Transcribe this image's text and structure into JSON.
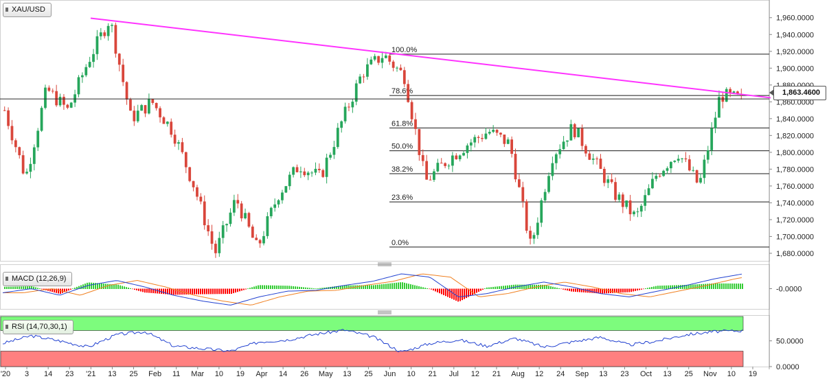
{
  "symbol_label": "XAU/USD",
  "macd_label": "MACD (12,26,9)",
  "rsi_label": "RSI (14,70,30,1)",
  "current_price_label": "1,863.4600",
  "chart_data": [
    {
      "type": "candlestick",
      "symbol": "XAU/USD",
      "y_axis_ticks": [
        "1,960.0000",
        "1,940.0000",
        "1,920.0000",
        "1,900.0000",
        "1,880.0000",
        "1,860.0000",
        "1,840.0000",
        "1,820.0000",
        "1,800.0000",
        "1,780.0000",
        "1,760.0000",
        "1,740.0000",
        "1,720.0000",
        "1,700.0000",
        "1,680.0000"
      ],
      "ylim": [
        1671,
        1981
      ],
      "x_axis_ticks": [
        "'20",
        "3",
        "14",
        "23",
        "'21",
        "13",
        "25",
        "Feb",
        "11",
        "Mar",
        "10",
        "19",
        "Apr",
        "14",
        "26",
        "May",
        "13",
        "25",
        "Jun",
        "10",
        "21",
        "Jul",
        "12",
        "21",
        "Aug",
        "12",
        "24",
        "Sep",
        "13",
        "23",
        "Oct",
        "13",
        "25",
        "Nov",
        "10",
        "19"
      ],
      "current_price": 1863.46,
      "trendline": {
        "color": "#ff33ff",
        "from": 1959.4,
        "to": 1864.8
      },
      "fibonacci_levels": [
        {
          "label": "100.0%",
          "value": 1916.7
        },
        {
          "label": "78.6%",
          "value": 1867.5
        },
        {
          "label": "61.8%",
          "value": 1829.0
        },
        {
          "label": "50.0%",
          "value": 1801.8
        },
        {
          "label": "38.2%",
          "value": 1774.6
        },
        {
          "label": "23.6%",
          "value": 1741.1
        },
        {
          "label": "0.0%",
          "value": 1687.4
        }
      ],
      "swing_points": [
        {
          "date": "'20",
          "price": 1850
        },
        {
          "date": "3",
          "price": 1770
        },
        {
          "date": "14",
          "price": 1875
        },
        {
          "date": "23",
          "price": 1850
        },
        {
          "date": "'21",
          "price": 1910
        },
        {
          "date": "13",
          "price": 1959
        },
        {
          "date": "25",
          "price": 1840
        },
        {
          "date": "Feb",
          "price": 1860
        },
        {
          "date": "11",
          "price": 1825
        },
        {
          "date": "Mar",
          "price": 1760
        },
        {
          "date": "10",
          "price": 1680
        },
        {
          "date": "19",
          "price": 1745
        },
        {
          "date": "Apr",
          "price": 1685
        },
        {
          "date": "14",
          "price": 1750
        },
        {
          "date": "26",
          "price": 1785
        },
        {
          "date": "May",
          "price": 1770
        },
        {
          "date": "13",
          "price": 1835
        },
        {
          "date": "25",
          "price": 1895
        },
        {
          "date": "Jun",
          "price": 1916
        },
        {
          "date": "10",
          "price": 1890
        },
        {
          "date": "21",
          "price": 1765
        },
        {
          "date": "Jul",
          "price": 1790
        },
        {
          "date": "12",
          "price": 1810
        },
        {
          "date": "21",
          "price": 1825
        },
        {
          "date": "Aug",
          "price": 1810
        },
        {
          "date": "12",
          "price": 1687
        },
        {
          "date": "24",
          "price": 1795
        },
        {
          "date": "Sep",
          "price": 1830
        },
        {
          "date": "13",
          "price": 1790
        },
        {
          "date": "23",
          "price": 1750
        },
        {
          "date": "Oct",
          "price": 1722
        },
        {
          "date": "13",
          "price": 1775
        },
        {
          "date": "25",
          "price": 1800
        },
        {
          "date": "Nov",
          "price": 1760
        },
        {
          "date": "10",
          "price": 1868
        },
        {
          "date": "19",
          "price": 1863
        }
      ]
    },
    {
      "type": "line",
      "name": "MACD (12,26,9)",
      "y_axis_ticks": [
        "-0.0000"
      ],
      "trend": [
        -5,
        0,
        -8,
        4,
        10,
        2,
        -8,
        -15,
        -20,
        -10,
        -3,
        -2,
        4,
        9,
        18,
        14,
        -10,
        -6,
        2,
        8,
        2,
        -6,
        -10,
        -3,
        4,
        12,
        18
      ],
      "histogram_colors": {
        "positive": "#33cc33",
        "negative": "#ff0000"
      }
    },
    {
      "type": "line",
      "name": "RSI (14,70,30,1)",
      "y_axis_ticks": [
        "50.0000",
        "0.0000"
      ],
      "ylim": [
        0,
        100
      ],
      "overbought": 70,
      "oversold": 30,
      "trend": [
        45,
        60,
        50,
        38,
        62,
        68,
        40,
        35,
        30,
        48,
        52,
        63,
        71,
        58,
        28,
        45,
        52,
        40,
        55,
        38,
        48,
        57,
        42,
        50,
        62,
        68,
        70
      ]
    }
  ]
}
